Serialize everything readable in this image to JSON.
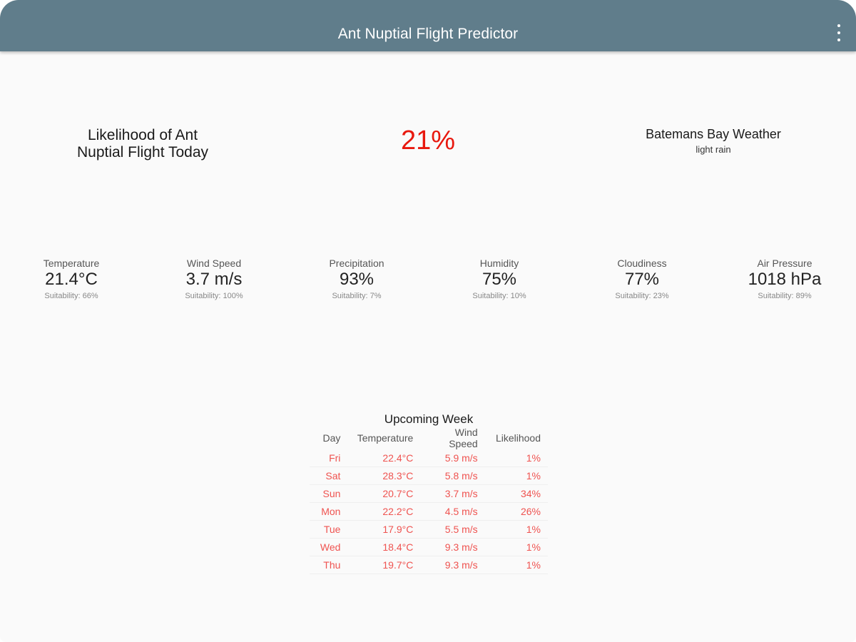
{
  "app": {
    "title": "Ant Nuptial Flight Predictor",
    "menu_icon": "more-vert-icon"
  },
  "summary": {
    "headline": "Likelihood of Ant Nuptial Flight Today",
    "likelihood": "21%",
    "weather_title": "Batemans Bay Weather",
    "weather_desc": "light rain"
  },
  "stats": [
    {
      "label": "Temperature",
      "value": "21.4°C",
      "suitability": "Suitability: 66%"
    },
    {
      "label": "Wind Speed",
      "value": "3.7 m/s",
      "suitability": "Suitability: 100%"
    },
    {
      "label": "Precipitation",
      "value": "93%",
      "suitability": "Suitability: 7%"
    },
    {
      "label": "Humidity",
      "value": "75%",
      "suitability": "Suitability: 10%"
    },
    {
      "label": "Cloudiness",
      "value": "77%",
      "suitability": "Suitability: 23%"
    },
    {
      "label": "Air Pressure",
      "value": "1018 hPa",
      "suitability": "Suitability: 89%"
    }
  ],
  "week": {
    "title": "Upcoming Week",
    "headers": [
      "Day",
      "Temperature",
      "Wind Speed",
      "Likelihood"
    ],
    "rows": [
      [
        "Fri",
        "22.4°C",
        "5.9 m/s",
        "1%"
      ],
      [
        "Sat",
        "28.3°C",
        "5.8 m/s",
        "1%"
      ],
      [
        "Sun",
        "20.7°C",
        "3.7 m/s",
        "34%"
      ],
      [
        "Mon",
        "22.2°C",
        "4.5 m/s",
        "26%"
      ],
      [
        "Tue",
        "17.9°C",
        "5.5 m/s",
        "1%"
      ],
      [
        "Wed",
        "18.4°C",
        "9.3 m/s",
        "1%"
      ],
      [
        "Thu",
        "19.7°C",
        "9.3 m/s",
        "1%"
      ]
    ]
  },
  "colors": {
    "appbar": "#607d8b",
    "accent": "#e8180e",
    "forecast_text": "#ef5350",
    "background": "#fafafa"
  }
}
